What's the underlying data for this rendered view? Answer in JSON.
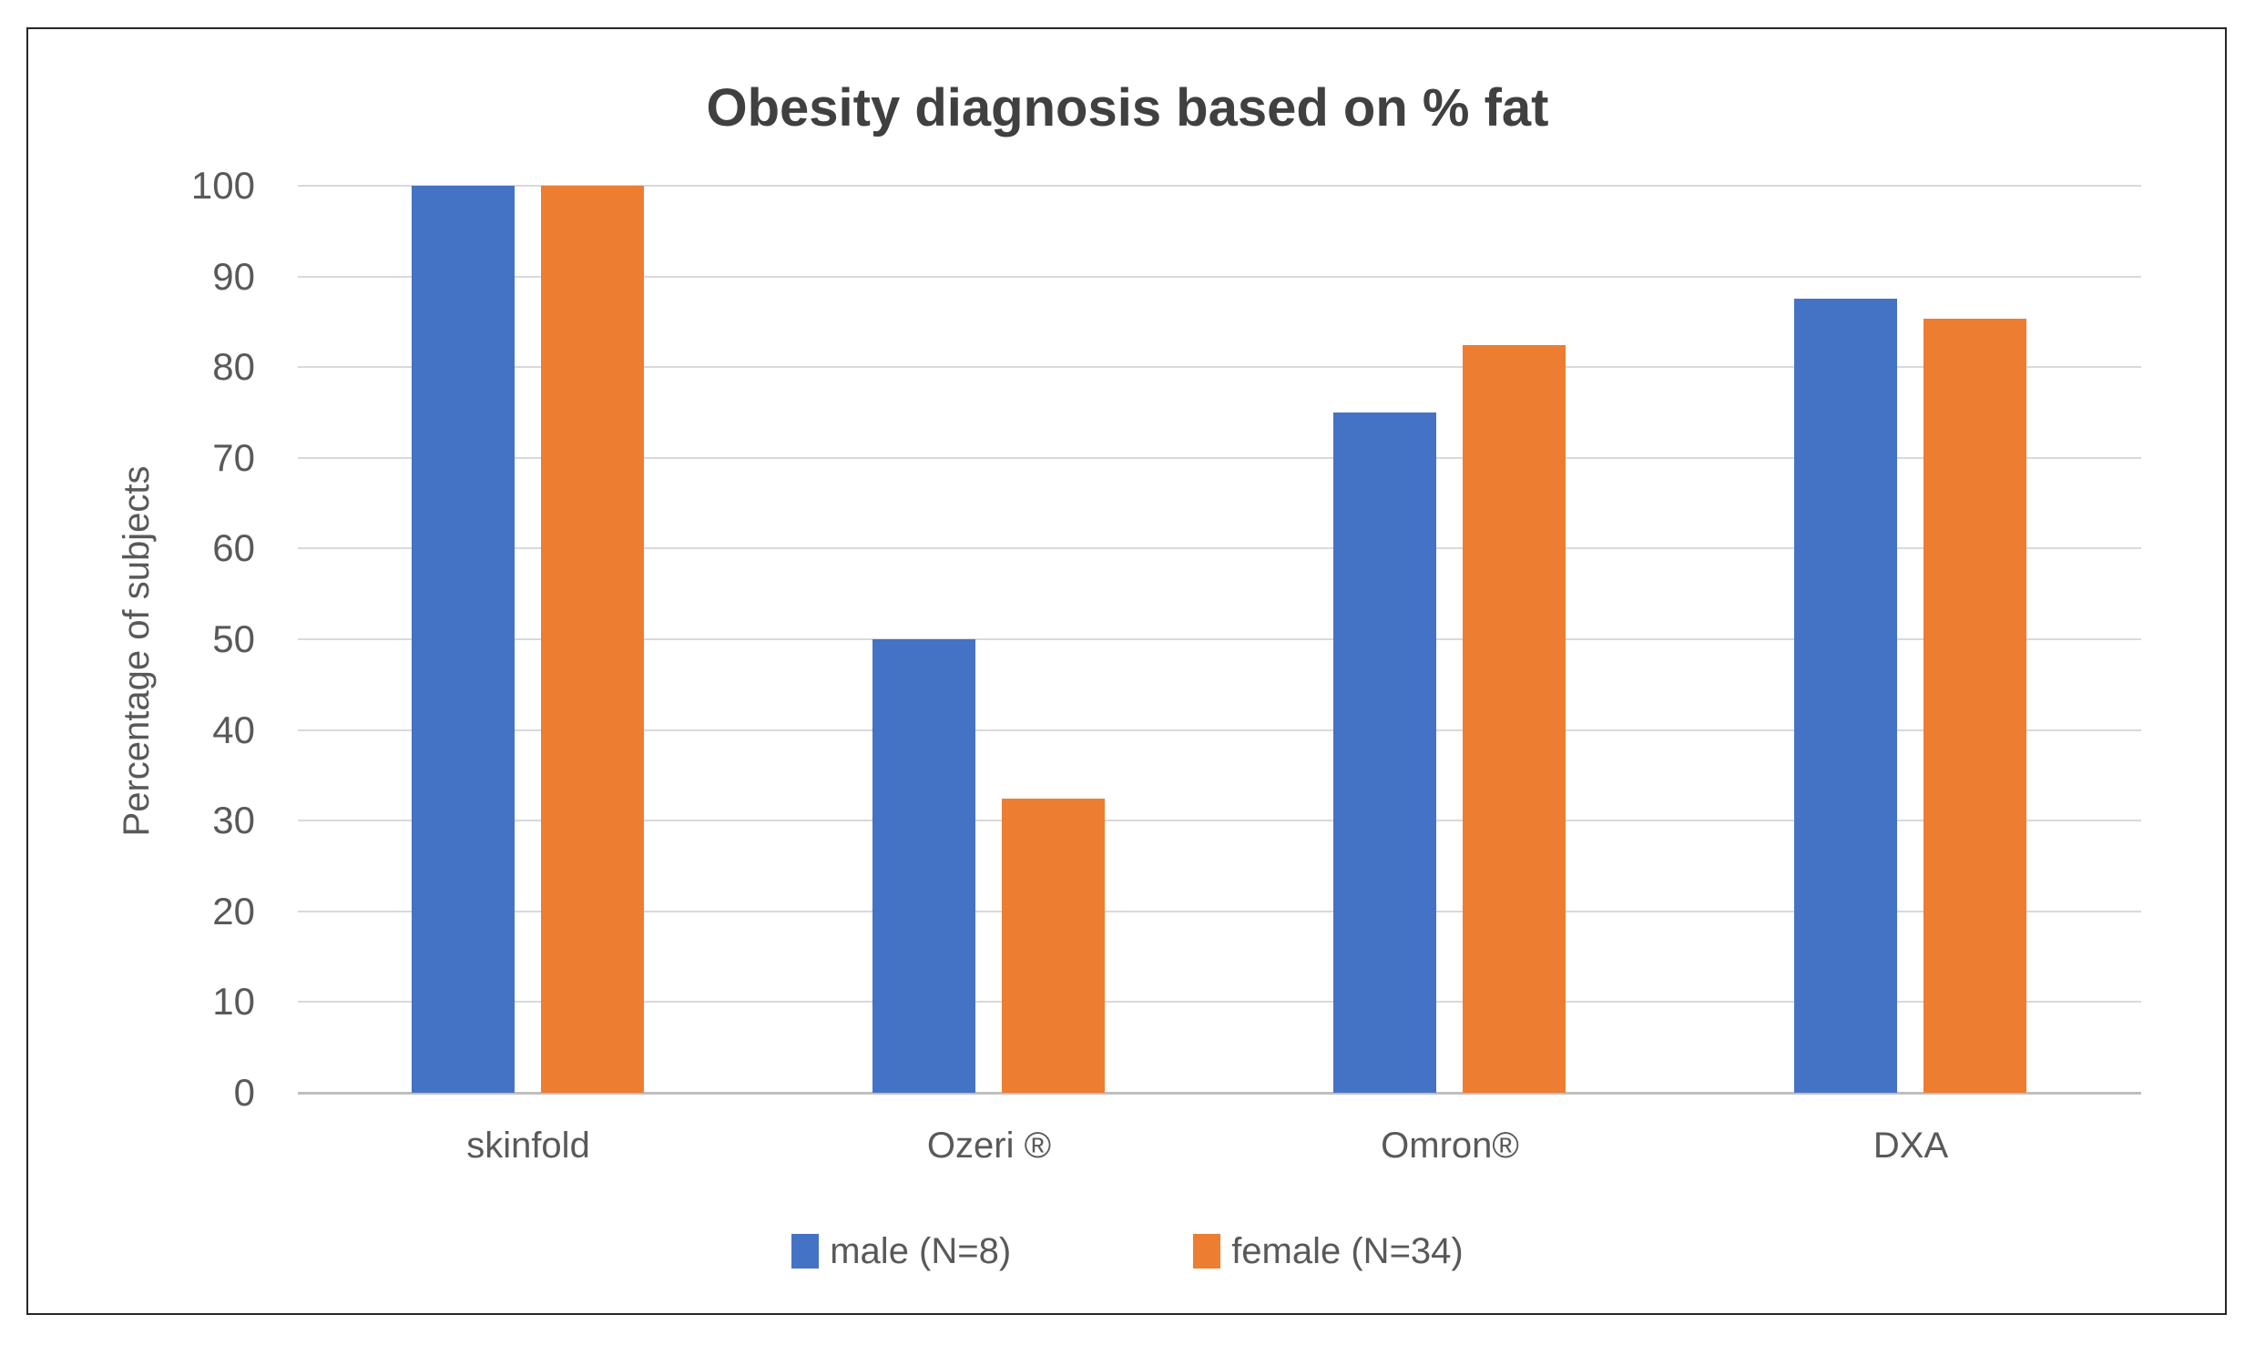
{
  "chart_data": {
    "type": "bar",
    "title": "Obesity diagnosis based on % fat",
    "xlabel": "",
    "ylabel": "Percentage of subjects",
    "categories": [
      "skinfold",
      "Ozeri ®",
      "Omron®",
      "DXA"
    ],
    "series": [
      {
        "name": "male (N=8)",
        "color": "#4472C4",
        "values": [
          100,
          50,
          75,
          87.5
        ]
      },
      {
        "name": "female (N=34)",
        "color": "#ED7D31",
        "values": [
          100,
          32.4,
          82.4,
          85.3
        ]
      }
    ],
    "ylim": [
      0,
      100
    ],
    "yticks": [
      0,
      10,
      20,
      30,
      40,
      50,
      60,
      70,
      80,
      90,
      100
    ],
    "grid": true,
    "legend_position": "bottom",
    "styles": {
      "title_color": "#404040",
      "axis_text_color": "#595959",
      "gridline_color": "#D9D9D9",
      "baseline_color": "#BFBFBF",
      "frame_border_color": "#262626",
      "background": "#FFFFFF"
    }
  }
}
